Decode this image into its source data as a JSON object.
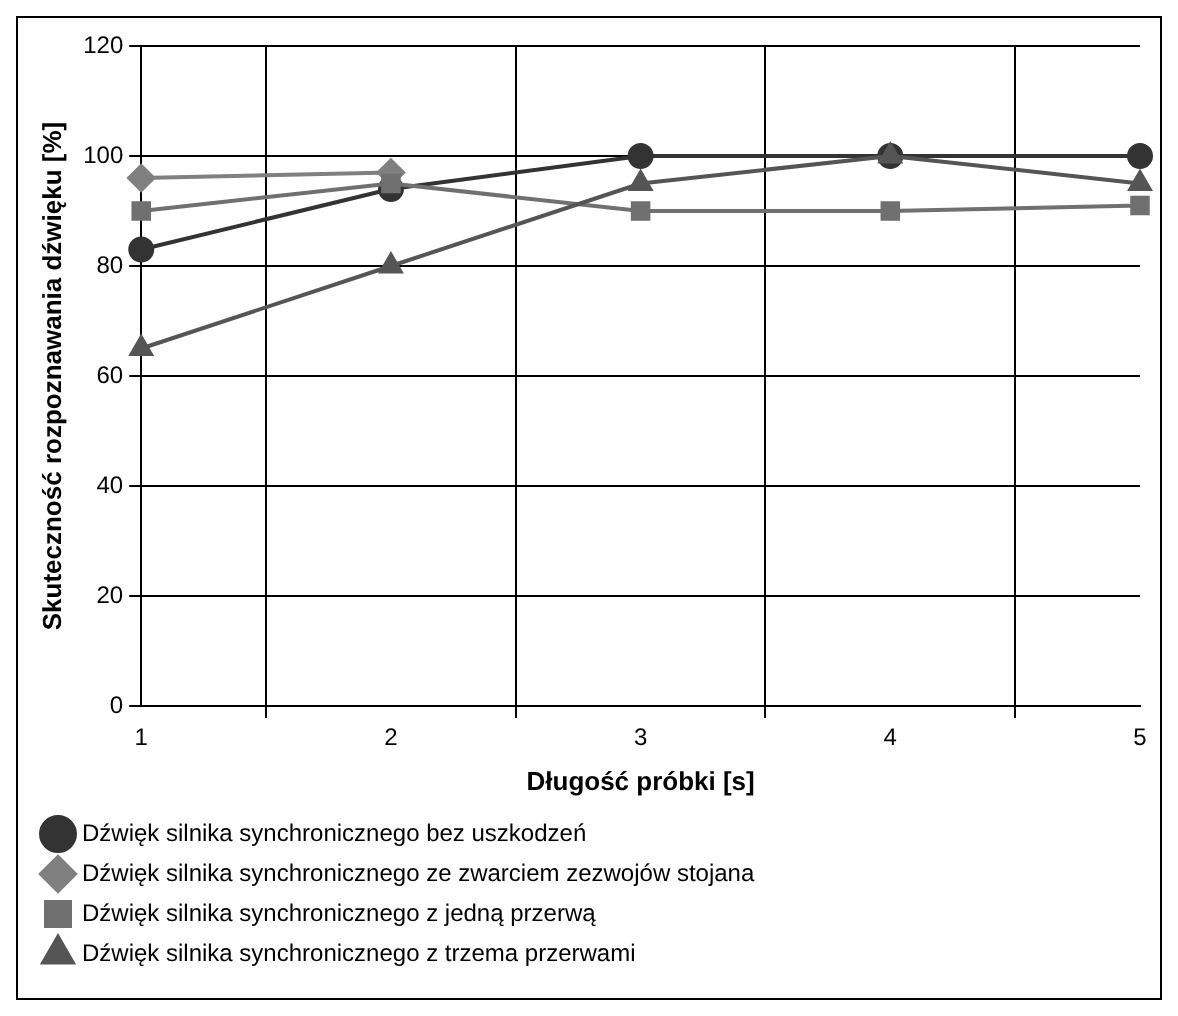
{
  "chart_data": {
    "type": "line",
    "xlabel": "Długość próbki [s]",
    "ylabel": "Skuteczność rozpoznawania dźwięku [%]",
    "categories": [
      "1",
      "2",
      "3",
      "4",
      "5"
    ],
    "series": [
      {
        "name": "Dźwięk silnika synchronicznego bez uszkodzeń",
        "color": "#333333",
        "marker": "circle",
        "values": [
          83,
          94,
          100,
          100,
          100
        ]
      },
      {
        "name": "Dźwięk silnika synchronicznego ze zwarciem zezwojów stojana",
        "color": "#808080",
        "marker": "diamond",
        "values": [
          96,
          97,
          null,
          null,
          null
        ]
      },
      {
        "name": "Dźwięk silnika synchronicznego z jedną przerwą",
        "color": "#707070",
        "marker": "square",
        "values": [
          90,
          95,
          90,
          90,
          91
        ]
      },
      {
        "name": "Dźwięk silnika synchronicznego z trzema przerwami",
        "color": "#555555",
        "marker": "triangle",
        "values": [
          65,
          80,
          95,
          100,
          95
        ]
      }
    ],
    "ylim": [
      0,
      120
    ],
    "yticks": [
      0,
      20,
      40,
      60,
      80,
      100,
      120
    ],
    "grid": true,
    "legend": "bottom",
    "line_style": "solid"
  }
}
